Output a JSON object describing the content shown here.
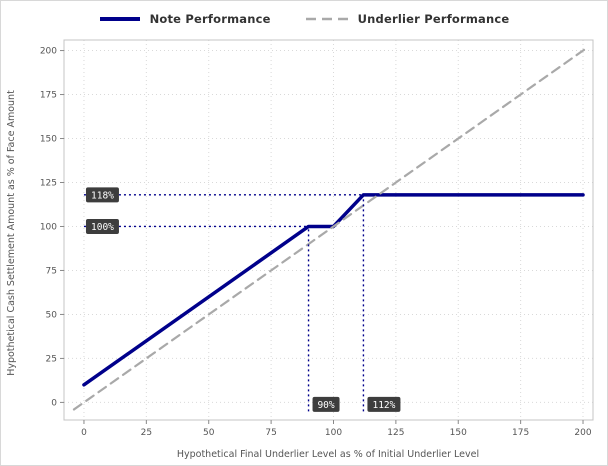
{
  "chart_data": {
    "type": "line",
    "title": "",
    "xlabel": "Hypothetical Final Underlier Level as % of Initial Underlier Level",
    "ylabel": "Hypothetical Cash Settlement Amount as % of Face Amount",
    "xlim": [
      -8,
      204
    ],
    "ylim": [
      -10,
      206
    ],
    "xticks": [
      0,
      25,
      50,
      75,
      100,
      125,
      150,
      175,
      200
    ],
    "yticks": [
      0,
      25,
      50,
      75,
      100,
      125,
      150,
      175,
      200
    ],
    "grid": true,
    "legend_position": "top-center",
    "series": [
      {
        "name": "Note Performance",
        "style": "solid",
        "color": "#00008B",
        "width": 3.5,
        "points": [
          [
            0,
            10
          ],
          [
            90,
            100
          ],
          [
            100,
            100
          ],
          [
            112,
            118
          ],
          [
            200,
            118
          ]
        ]
      },
      {
        "name": "Underlier Performance",
        "style": "dashed",
        "color": "#a9a9a9",
        "width": 2.2,
        "points": [
          [
            -4,
            -4
          ],
          [
            201,
            201
          ]
        ]
      }
    ],
    "annotations": [
      {
        "type": "hline",
        "y": 118,
        "x_end": 112,
        "label": "118%"
      },
      {
        "type": "hline",
        "y": 100,
        "x_end": 90,
        "label": "100%"
      },
      {
        "type": "vline",
        "x": 90,
        "y_end": 100,
        "label": "90%"
      },
      {
        "type": "vline",
        "x": 112,
        "y_end": 118,
        "label": "112%"
      }
    ],
    "colors": {
      "background": "#ffffff",
      "grid": "#d9d9d9",
      "plot_border": "#c4c4c4",
      "axis_text": "#555555",
      "tick_mark": "#888888",
      "legend_text": "#333333",
      "annotation_line": "#00008B",
      "annotation_label_bg": "#3d3d3d",
      "annotation_label_text": "#ffffff"
    }
  }
}
